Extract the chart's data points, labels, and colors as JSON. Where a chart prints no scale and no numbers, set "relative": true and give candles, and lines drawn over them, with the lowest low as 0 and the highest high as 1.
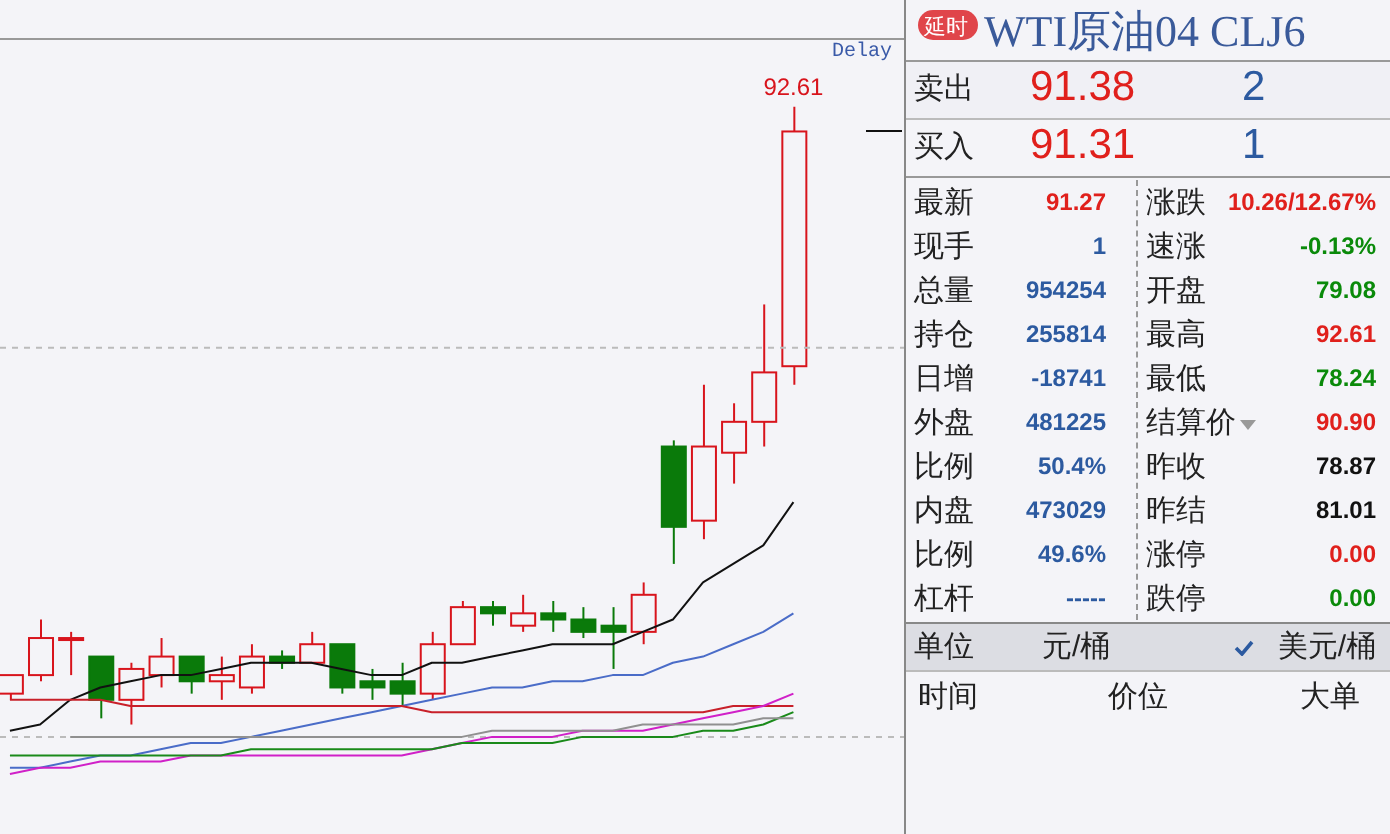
{
  "chart_data": [
    {
      "type": "candlestick",
      "relative": true,
      "categories": [
        null,
        null,
        null,
        null,
        null,
        null,
        null,
        null,
        null,
        null,
        null,
        null,
        null,
        null,
        null,
        null,
        null,
        null,
        null,
        null,
        null,
        null,
        null,
        null,
        null,
        null,
        null
      ],
      "ohlc": [
        [
          0.05,
          0.08,
          0.04,
          0.08
        ],
        [
          0.08,
          0.17,
          0.07,
          0.14
        ],
        [
          0.14,
          0.15,
          0.08,
          0.14
        ],
        [
          0.11,
          0.11,
          0.01,
          0.04
        ],
        [
          0.04,
          0.1,
          0,
          0.09
        ],
        [
          0.08,
          0.14,
          0.06,
          0.11
        ],
        [
          0.11,
          0.11,
          0.05,
          0.07
        ],
        [
          0.07,
          0.11,
          0.04,
          0.08
        ],
        [
          0.06,
          0.13,
          0.05,
          0.11
        ],
        [
          0.11,
          0.12,
          0.09,
          0.1
        ],
        [
          0.1,
          0.15,
          0.1,
          0.13
        ],
        [
          0.13,
          0.13,
          0.05,
          0.06
        ],
        [
          0.07,
          0.09,
          0.04,
          0.06
        ],
        [
          0.07,
          0.1,
          0.03,
          0.05
        ],
        [
          0.05,
          0.15,
          0.04,
          0.13
        ],
        [
          0.13,
          0.2,
          0.13,
          0.19
        ],
        [
          0.19,
          0.2,
          0.16,
          0.18
        ],
        [
          0.16,
          0.21,
          0.15,
          0.18
        ],
        [
          0.18,
          0.2,
          0.15,
          0.17
        ],
        [
          0.17,
          0.19,
          0.14,
          0.15
        ],
        [
          0.16,
          0.19,
          0.09,
          0.15
        ],
        [
          0.15,
          0.23,
          0.13,
          0.21
        ],
        [
          0.45,
          0.46,
          0.26,
          0.32
        ],
        [
          0.33,
          0.55,
          0.3,
          0.45
        ],
        [
          0.44,
          0.52,
          0.39,
          0.49
        ],
        [
          0.49,
          0.68,
          0.45,
          0.57
        ],
        [
          0.58,
          1,
          0.55,
          0.96
        ]
      ],
      "colors": [
        "#d8141c",
        "#d8141c",
        "#d8141c",
        "#0a7a0a",
        "#d8141c",
        "#d8141c",
        "#0a7a0a",
        "#d8141c",
        "#d8141c",
        "#0a7a0a",
        "#d8141c",
        "#0a7a0a",
        "#0a7a0a",
        "#0a7a0a",
        "#d8141c",
        "#d8141c",
        "#0a7a0a",
        "#d8141c",
        "#0a7a0a",
        "#0a7a0a",
        "#0a7a0a",
        "#d8141c",
        "#0a7a0a",
        "#d8141c",
        "#d8141c",
        "#d8141c",
        "#d8141c"
      ],
      "series": [
        {
          "type": "line",
          "color": "#111111",
          "values": [
            -0.01,
            0.0,
            0.04,
            0.06,
            0.07,
            0.08,
            0.08,
            0.09,
            0.1,
            0.1,
            0.1,
            0.09,
            0.08,
            0.08,
            0.1,
            0.1,
            0.11,
            0.12,
            0.13,
            0.13,
            0.13,
            0.15,
            0.17,
            0.23,
            0.26,
            0.29,
            0.36
          ]
        },
        {
          "type": "line",
          "color": "#4a6cc8",
          "values": [
            -0.07,
            -0.07,
            -0.06,
            -0.05,
            -0.05,
            -0.04,
            -0.03,
            -0.03,
            -0.02,
            -0.01,
            0.0,
            0.01,
            0.02,
            0.03,
            0.04,
            0.05,
            0.06,
            0.06,
            0.07,
            0.07,
            0.08,
            0.08,
            0.1,
            0.11,
            0.13,
            0.15,
            0.18
          ]
        },
        {
          "type": "line",
          "color": "#c8202a",
          "values": [
            0.04,
            0.04,
            0.04,
            0.04,
            0.03,
            0.03,
            0.03,
            0.03,
            0.03,
            0.03,
            0.03,
            0.03,
            0.03,
            0.03,
            0.02,
            0.02,
            0.02,
            0.02,
            0.02,
            0.02,
            0.02,
            0.02,
            0.02,
            0.02,
            0.03,
            0.03,
            0.03
          ]
        },
        {
          "type": "line",
          "color": "#d020c8",
          "values": [
            -0.08,
            -0.07,
            -0.07,
            -0.06,
            -0.06,
            -0.06,
            -0.05,
            -0.05,
            -0.05,
            -0.05,
            -0.05,
            -0.05,
            -0.05,
            -0.05,
            -0.04,
            -0.03,
            -0.02,
            -0.02,
            -0.02,
            -0.01,
            -0.01,
            -0.01,
            0.0,
            0.01,
            0.02,
            0.03,
            0.05
          ]
        },
        {
          "type": "line",
          "color": "#1a8a1a",
          "values": [
            -0.05,
            -0.05,
            -0.05,
            -0.05,
            -0.05,
            -0.05,
            -0.05,
            -0.05,
            -0.04,
            -0.04,
            -0.04,
            -0.04,
            -0.04,
            -0.04,
            -0.04,
            -0.03,
            -0.03,
            -0.03,
            -0.03,
            -0.02,
            -0.02,
            -0.02,
            -0.02,
            -0.01,
            -0.01,
            0.0,
            0.02
          ]
        },
        {
          "type": "line",
          "color": "#909090",
          "values": [
            null,
            null,
            -0.02,
            -0.02,
            -0.02,
            -0.02,
            -0.02,
            -0.02,
            -0.02,
            -0.02,
            -0.02,
            -0.02,
            -0.02,
            -0.02,
            -0.02,
            -0.02,
            -0.01,
            -0.01,
            -0.01,
            -0.01,
            -0.01,
            0.0,
            0.0,
            0.0,
            0.0,
            0.01,
            0.01
          ]
        }
      ],
      "ref_lines": [
        {
          "axis": "y",
          "value": 0.61,
          "color": "#bbbbbb",
          "line_style": "dashed"
        },
        {
          "axis": "y",
          "value": -0.02,
          "color": "#bbbbbb",
          "line_style": "dashed"
        }
      ],
      "annotations": [
        {
          "text": "92.61",
          "y": 1
        },
        "Delay"
      ]
    },
    {
      "type": "other",
      "title": "WTI原油04 CLJ6",
      "annotations": [
        "延时",
        "卖出",
        "91.38",
        "2",
        "买入",
        "91.31",
        "1",
        "最新",
        "91.27",
        "涨跌",
        "10.26/12.67%",
        "现手",
        "1",
        "速涨",
        "-0.13%",
        "总量",
        "954254",
        "开盘",
        "79.08",
        "持仓",
        "255814",
        "最高",
        "92.61",
        "日增",
        "-18741",
        "最低",
        "78.24",
        "外盘",
        "481225",
        "结算价",
        "90.90",
        "比例",
        "50.4%",
        "昨收",
        "78.87",
        "内盘",
        "473029",
        "昨结",
        "81.01",
        "比例",
        "49.6%",
        "涨停",
        "0.00",
        "杠杆",
        "-----",
        "跌停",
        "0.00",
        "单位",
        "元/桶",
        "美元/桶",
        "时间",
        "价位",
        "大单"
      ],
      "colors": [
        "#ffffff",
        "#222222",
        "#e0201c",
        "#2c5aa0",
        "#222222",
        "#e0201c",
        "#2c5aa0",
        "#222222",
        "#e0201c",
        "#222222",
        "#e0201c",
        "#222222",
        "#2c5aa0",
        "#222222",
        "#0a8a0a",
        "#222222",
        "#2c5aa0",
        "#222222",
        "#0a8a0a",
        "#222222",
        "#2c5aa0",
        "#222222",
        "#e0201c",
        "#222222",
        "#2c5aa0",
        "#222222",
        "#0a8a0a",
        "#222222",
        "#2c5aa0",
        "#222222",
        "#e0201c",
        "#222222",
        "#2c5aa0",
        "#222222",
        "#111111",
        "#222222",
        "#2c5aa0",
        "#222222",
        "#111111",
        "#222222",
        "#2c5aa0",
        "#222222",
        "#e0201c",
        "#222222",
        "#2c5aa0",
        "#222222",
        "#0a8a0a",
        "#222222",
        "#222222",
        "#222222",
        "#222222",
        "#222222",
        "#222222"
      ]
    }
  ]
}
